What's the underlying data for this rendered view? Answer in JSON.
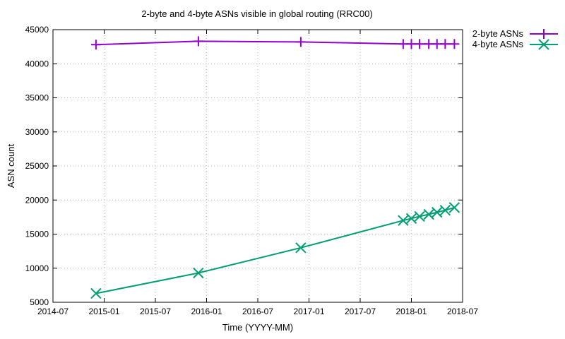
{
  "chart_data": {
    "type": "line",
    "title": "2-byte and 4-byte ASNs visible in global routing (RRC00)",
    "xlabel": "Time (YYYY-MM)",
    "ylabel": "ASN count",
    "xlim": [
      2014.5,
      2018.5
    ],
    "ylim": [
      5000,
      45000
    ],
    "xticks": [
      {
        "value": 2014.5,
        "label": "2014-07"
      },
      {
        "value": 2015.0,
        "label": "2015-01"
      },
      {
        "value": 2015.5,
        "label": "2015-07"
      },
      {
        "value": 2016.0,
        "label": "2016-01"
      },
      {
        "value": 2016.5,
        "label": "2016-07"
      },
      {
        "value": 2017.0,
        "label": "2017-01"
      },
      {
        "value": 2017.5,
        "label": "2017-07"
      },
      {
        "value": 2018.0,
        "label": "2018-01"
      },
      {
        "value": 2018.5,
        "label": "2018-07"
      }
    ],
    "yticks": [
      5000,
      10000,
      15000,
      20000,
      25000,
      30000,
      35000,
      40000,
      45000
    ],
    "legend_position": "outside-top-right",
    "series": [
      {
        "name": "2-byte ASNs",
        "color": "#9400d3",
        "marker": "plus",
        "x": [
          2014.92,
          2015.92,
          2016.92,
          2017.92,
          2018.0,
          2018.08,
          2018.17,
          2018.25,
          2018.33,
          2018.42
        ],
        "y": [
          42800,
          43300,
          43200,
          42900,
          42900,
          42900,
          42900,
          42900,
          42900,
          42900
        ]
      },
      {
        "name": "4-byte ASNs",
        "color": "#009e73",
        "marker": "x",
        "x": [
          2014.92,
          2015.92,
          2016.92,
          2017.92,
          2018.0,
          2018.08,
          2018.17,
          2018.25,
          2018.33,
          2018.42
        ],
        "y": [
          6300,
          9300,
          13000,
          17000,
          17300,
          17600,
          17900,
          18200,
          18500,
          18900
        ]
      }
    ]
  }
}
